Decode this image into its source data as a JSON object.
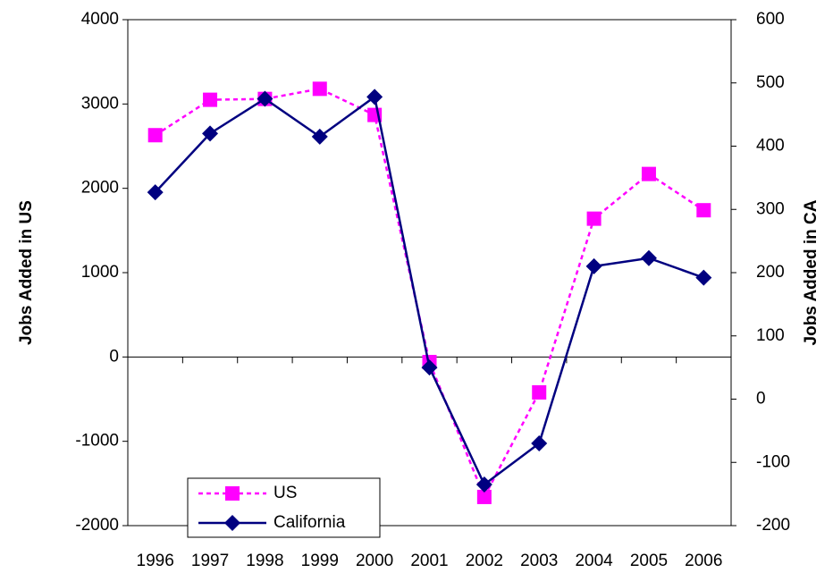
{
  "chart_data": {
    "type": "line",
    "categories": [
      "1996",
      "1997",
      "1998",
      "1999",
      "2000",
      "2001",
      "2002",
      "2003",
      "2004",
      "2005",
      "2006"
    ],
    "y_label": "Jobs Added in US",
    "y2_label": "Jobs Added in CA",
    "ylim": [
      -2000,
      4000
    ],
    "yticks": [
      -2000,
      -1000,
      0,
      1000,
      2000,
      3000,
      4000
    ],
    "y2lim": [
      -200,
      600
    ],
    "y2ticks": [
      -200,
      -100,
      0,
      100,
      200,
      300,
      400,
      500,
      600
    ],
    "legend": "lower left",
    "series": [
      {
        "name": "US",
        "color": "#ff00ff",
        "dashed": true,
        "marker": "square",
        "values": [
          2630,
          3050,
          3060,
          3180,
          2870,
          -60,
          -1660,
          -420,
          1640,
          2170,
          1740
        ]
      },
      {
        "name": "California",
        "color": "#000080",
        "dashed": false,
        "marker": "diamond",
        "axis": "y2",
        "values": [
          327,
          420,
          475,
          415,
          478,
          50,
          -135,
          -70,
          210,
          223,
          192
        ]
      }
    ]
  }
}
